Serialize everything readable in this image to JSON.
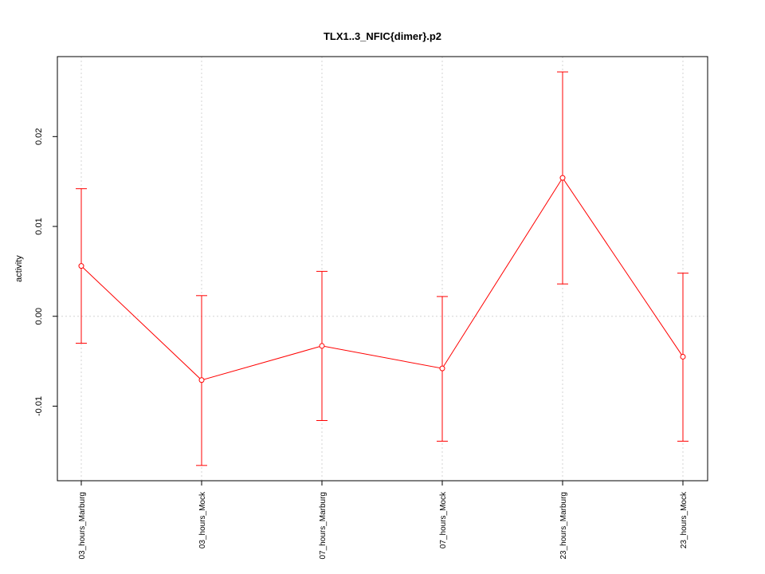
{
  "chart_data": {
    "type": "line",
    "title": "TLX1..3_NFIC{dimer}.p2",
    "xlabel": "",
    "ylabel": "activity",
    "categories": [
      "03_hours_Marburg",
      "03_hours_Mock",
      "07_hours_Marburg",
      "07_hours_Mock",
      "23_hours_Marburg",
      "23_hours_Mock"
    ],
    "series": [
      {
        "values": [
          0.0056,
          -0.0071,
          -0.0033,
          -0.0058,
          0.0154,
          -0.0045
        ],
        "lower": [
          -0.003,
          -0.0166,
          -0.0116,
          -0.0139,
          0.0036,
          -0.0139
        ],
        "upper": [
          0.0142,
          0.0023,
          0.005,
          0.0022,
          0.0272,
          0.0048
        ],
        "color": "#ff0000"
      }
    ],
    "yticks": [
      -0.01,
      0.0,
      0.01,
      0.02
    ],
    "ytick_labels": [
      "-0.01",
      "0.00",
      "0.01",
      "0.02"
    ],
    "ylim": [
      -0.0183,
      0.0289
    ],
    "grid": true,
    "grid_color": "#d3d3d3"
  }
}
